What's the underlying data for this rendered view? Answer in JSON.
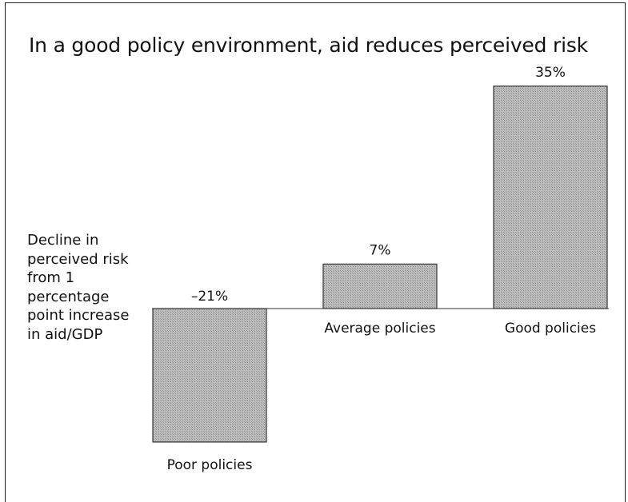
{
  "chart_data": {
    "type": "bar",
    "title": "In a good policy environment, aid reduces perceived risk",
    "ylabel": "Decline in perceived risk from 1 percentage point increase in aid/GDP",
    "xlabel": "",
    "categories": [
      "Poor policies",
      "Average policies",
      "Good policies"
    ],
    "values": [
      -21,
      7,
      35
    ],
    "value_labels": [
      "–21%",
      "7%",
      "35%"
    ],
    "ylim": [
      -33,
      40
    ],
    "grid": false,
    "bar_color": "#b3b3b3",
    "bar_edge_color": "#333333"
  }
}
